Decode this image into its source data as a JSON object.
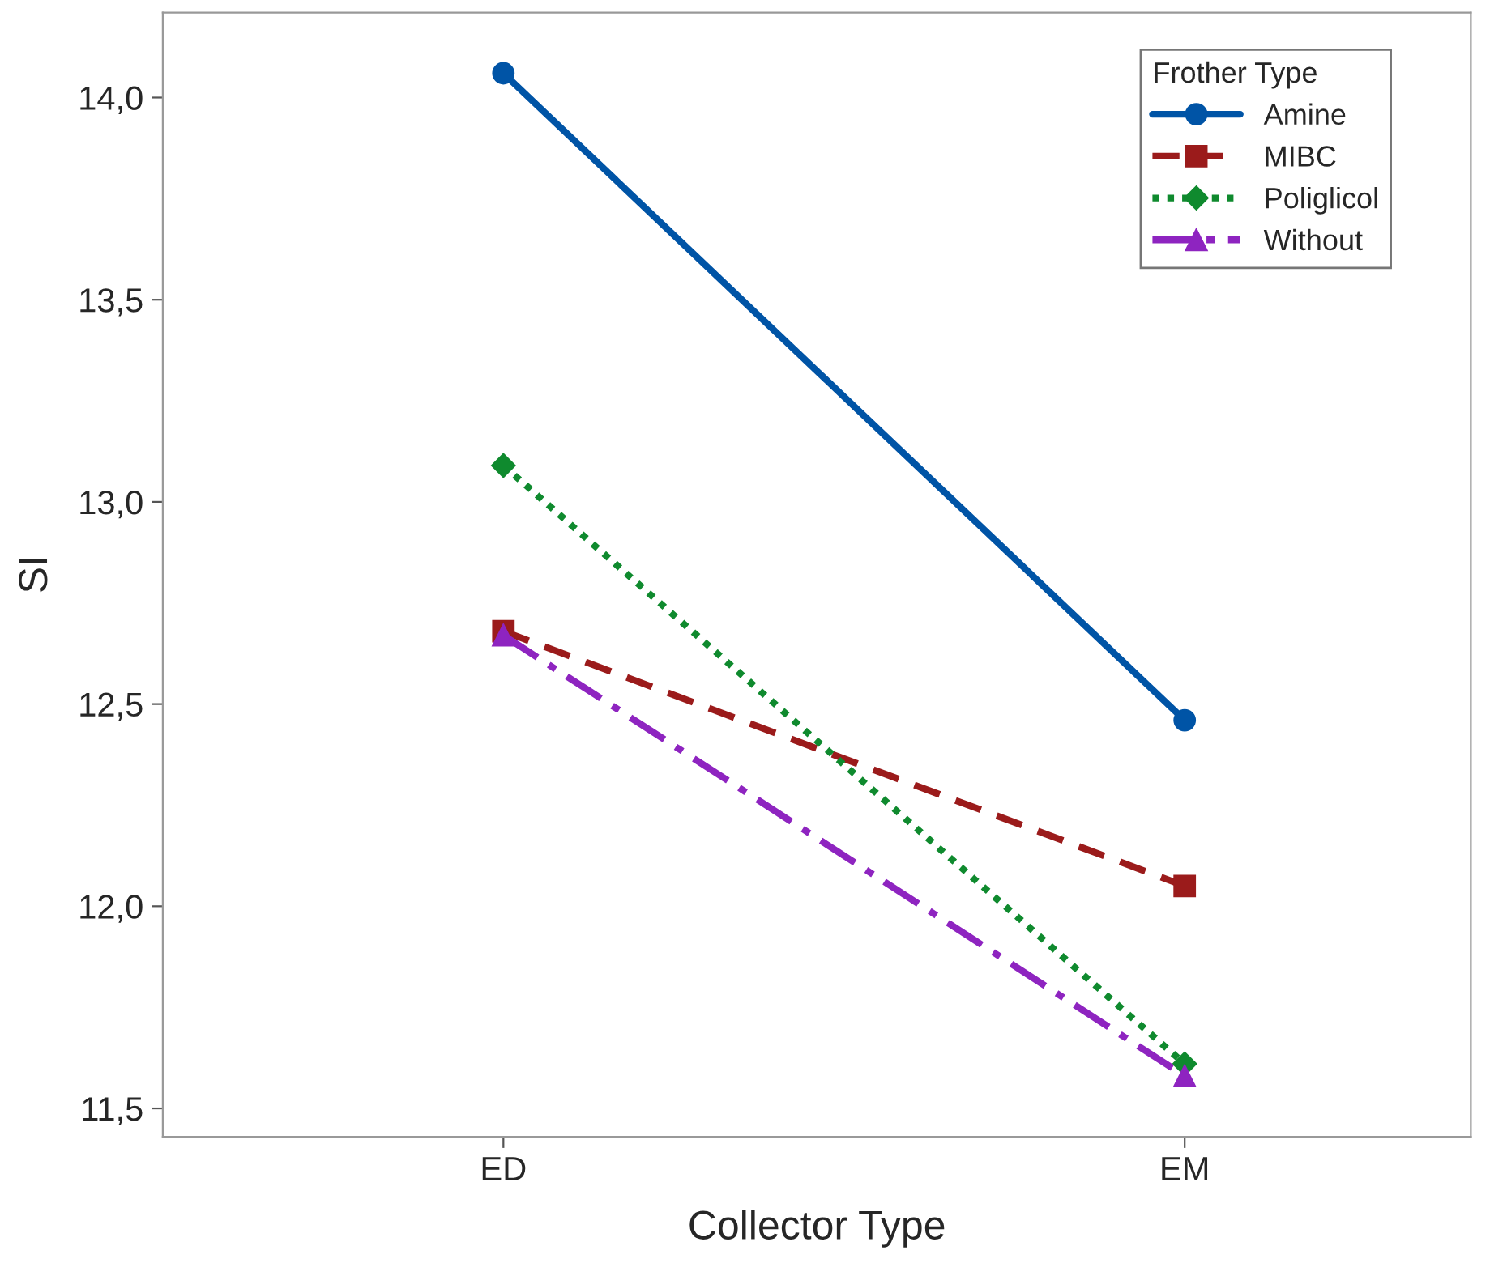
{
  "chart_data": {
    "type": "line",
    "xlabel": "Collector Type",
    "ylabel": "SI",
    "legend_title": "Frother Type",
    "categories": [
      "ED",
      "EM"
    ],
    "series": [
      {
        "name": "Amine",
        "color": "#0054a6",
        "values": [
          14.06,
          12.46
        ],
        "marker": "circle",
        "line_style": "solid"
      },
      {
        "name": "MIBC",
        "color": "#9b1b1b",
        "values": [
          12.68,
          12.05
        ],
        "marker": "square",
        "line_style": "dashed"
      },
      {
        "name": "Poliglicol",
        "color": "#0f8a2e",
        "values": [
          13.09,
          11.61
        ],
        "marker": "diamond",
        "line_style": "dotted"
      },
      {
        "name": "Without",
        "color": "#8e24c0",
        "values": [
          12.67,
          11.58
        ],
        "marker": "triangle",
        "line_style": "dashdot"
      }
    ],
    "ylim": [
      11.43,
      14.21
    ],
    "yticks": [
      {
        "value": 11.5,
        "label": "11,5"
      },
      {
        "value": 12.0,
        "label": "12,0"
      },
      {
        "value": 12.5,
        "label": "12,5"
      },
      {
        "value": 13.0,
        "label": "13,0"
      },
      {
        "value": 13.5,
        "label": "13,5"
      },
      {
        "value": 14.0,
        "label": "14,0"
      }
    ],
    "grid": false,
    "legend": "top right"
  }
}
